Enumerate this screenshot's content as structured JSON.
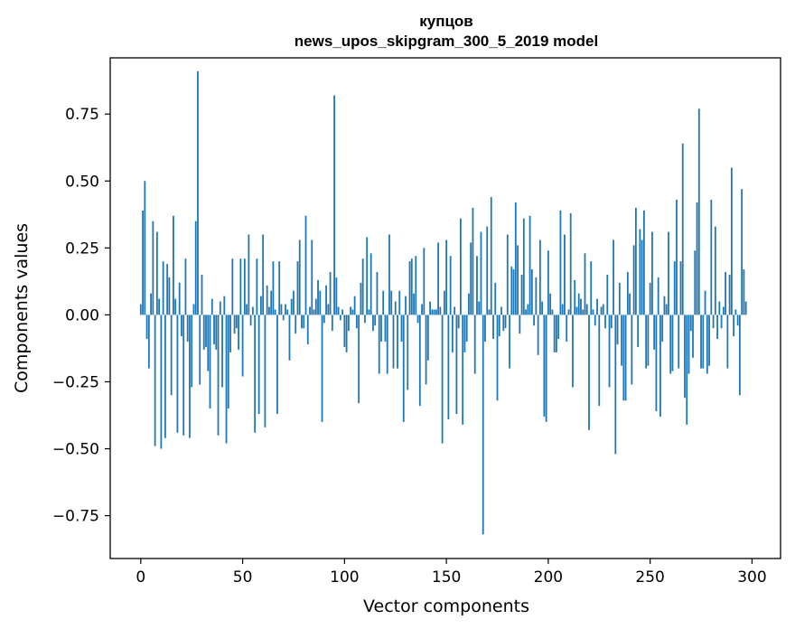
{
  "chart_data": {
    "type": "bar",
    "title": "купцов",
    "subtitle": "news_upos_skipgram_300_5_2019 model",
    "xlabel": "Vector components",
    "ylabel": "Components values",
    "xlim": [
      -15,
      314
    ],
    "ylim": [
      -0.91,
      0.96
    ],
    "xticks": [
      0,
      50,
      100,
      150,
      200,
      250,
      300
    ],
    "xtick_labels": [
      "0",
      "50",
      "100",
      "150",
      "200",
      "250",
      "300"
    ],
    "yticks": [
      -0.75,
      -0.5,
      -0.25,
      0.0,
      0.25,
      0.5,
      0.75
    ],
    "ytick_labels": [
      "−0.75",
      "−0.50",
      "−0.25",
      "0.00",
      "0.25",
      "0.50",
      "0.75"
    ],
    "bar_color": "#1f77b4",
    "grid": false,
    "x": "0..299 (component index)",
    "values": [
      0.04,
      0.39,
      0.5,
      -0.09,
      -0.2,
      0.08,
      0.35,
      -0.49,
      0.31,
      0.06,
      -0.5,
      0.2,
      -0.46,
      0.19,
      0.14,
      -0.3,
      0.37,
      0.06,
      -0.44,
      0.12,
      -0.08,
      -0.45,
      0.21,
      -0.1,
      -0.46,
      -0.27,
      0.04,
      0.35,
      0.91,
      -0.26,
      0.15,
      -0.13,
      -0.12,
      -0.21,
      -0.35,
      0.06,
      -0.11,
      -0.13,
      -0.45,
      0.05,
      -0.27,
      0.07,
      -0.48,
      -0.35,
      -0.14,
      0.21,
      -0.07,
      -0.05,
      -0.13,
      0.21,
      -0.23,
      0.21,
      0.04,
      0.3,
      -0.04,
      0.03,
      -0.44,
      0.21,
      -0.37,
      0.07,
      0.3,
      -0.42,
      0.11,
      0.03,
      0.09,
      0.2,
      0.02,
      -0.37,
      0.2,
      0.04,
      -0.02,
      0.04,
      0.02,
      -0.17,
      0.06,
      0.09,
      -0.07,
      0.2,
      0.28,
      -0.05,
      -0.05,
      0.37,
      -0.11,
      0.03,
      0.28,
      0.02,
      0.06,
      0.13,
      0.09,
      -0.4,
      -0.03,
      0.11,
      0.04,
      0.16,
      -0.06,
      0.82,
      0.14,
      0.03,
      -0.02,
      0.02,
      -0.12,
      -0.14,
      -0.06,
      0.03,
      0.02,
      0.07,
      -0.05,
      -0.33,
      0.12,
      0.21,
      -0.03,
      0.29,
      0.02,
      0.23,
      -0.06,
      -0.04,
      0.16,
      -0.22,
      -0.1,
      0.09,
      -0.1,
      -0.22,
      0.3,
      0.09,
      -0.2,
      0.05,
      -0.2,
      0.09,
      -0.1,
      -0.4,
      0.07,
      -0.28,
      0.2,
      0.21,
      0.08,
      0.22,
      -0.03,
      -0.34,
      0.04,
      0.25,
      -0.26,
      -0.17,
      0.05,
      0.02,
      0.02,
      0.02,
      0.27,
      0.03,
      -0.48,
      0.09,
      0.28,
      -0.39,
      0.22,
      -0.14,
      0.03,
      -0.37,
      -0.05,
      0.36,
      -0.41,
      -0.14,
      -0.1,
      0.08,
      0.27,
      0.4,
      -0.22,
      0.22,
      0.05,
      0.31,
      -0.82,
      -0.1,
      0.33,
      0.02,
      0.44,
      -0.09,
      0.12,
      -0.32,
      -0.08,
      0.03,
      -0.06,
      -0.05,
      0.3,
      -0.2,
      0.18,
      0.17,
      0.42,
      0.26,
      -0.07,
      0.15,
      0.36,
      0.02,
      0.04,
      0.37,
      0.17,
      -0.04,
      0.14,
      -0.15,
      0.28,
      0.05,
      -0.38,
      -0.4,
      0.24,
      0.08,
      0.02,
      -0.14,
      -0.14,
      -0.09,
      0.39,
      0.04,
      0.3,
      -0.1,
      0.02,
      0.38,
      -0.27,
      0.13,
      0.03,
      0.08,
      0.06,
      0.02,
      0.23,
      0.04,
      -0.43,
      0.2,
      0.02,
      -0.04,
      0.06,
      -0.34,
      0.03,
      0.04,
      -0.05,
      0.15,
      -0.27,
      -0.05,
      0.28,
      -0.52,
      -0.11,
      0.12,
      -0.19,
      -0.32,
      -0.32,
      0.16,
      0.08,
      -0.26,
      0.26,
      0.4,
      -0.12,
      0.32,
      0.28,
      0.39,
      -0.2,
      -0.19,
      0.12,
      0.31,
      -0.13,
      -0.36,
      0.14,
      -0.38,
      -0.1,
      0.07,
      0.04,
      0.31,
      -0.22,
      -0.21,
      0.2,
      0.43,
      -0.2,
      0.2,
      0.64,
      -0.31,
      -0.41,
      -0.22,
      -0.06,
      -0.16,
      0.24,
      0.42,
      0.77,
      -0.2,
      -0.2,
      0.09,
      -0.22,
      -0.19,
      0.43,
      -0.05,
      0.33,
      -0.09,
      0.05,
      -0.05,
      0.03,
      0.16,
      -0.2,
      0.15,
      0.55,
      -0.08,
      0.02,
      -0.04,
      -0.3,
      0.47,
      0.17,
      0.05
    ]
  }
}
